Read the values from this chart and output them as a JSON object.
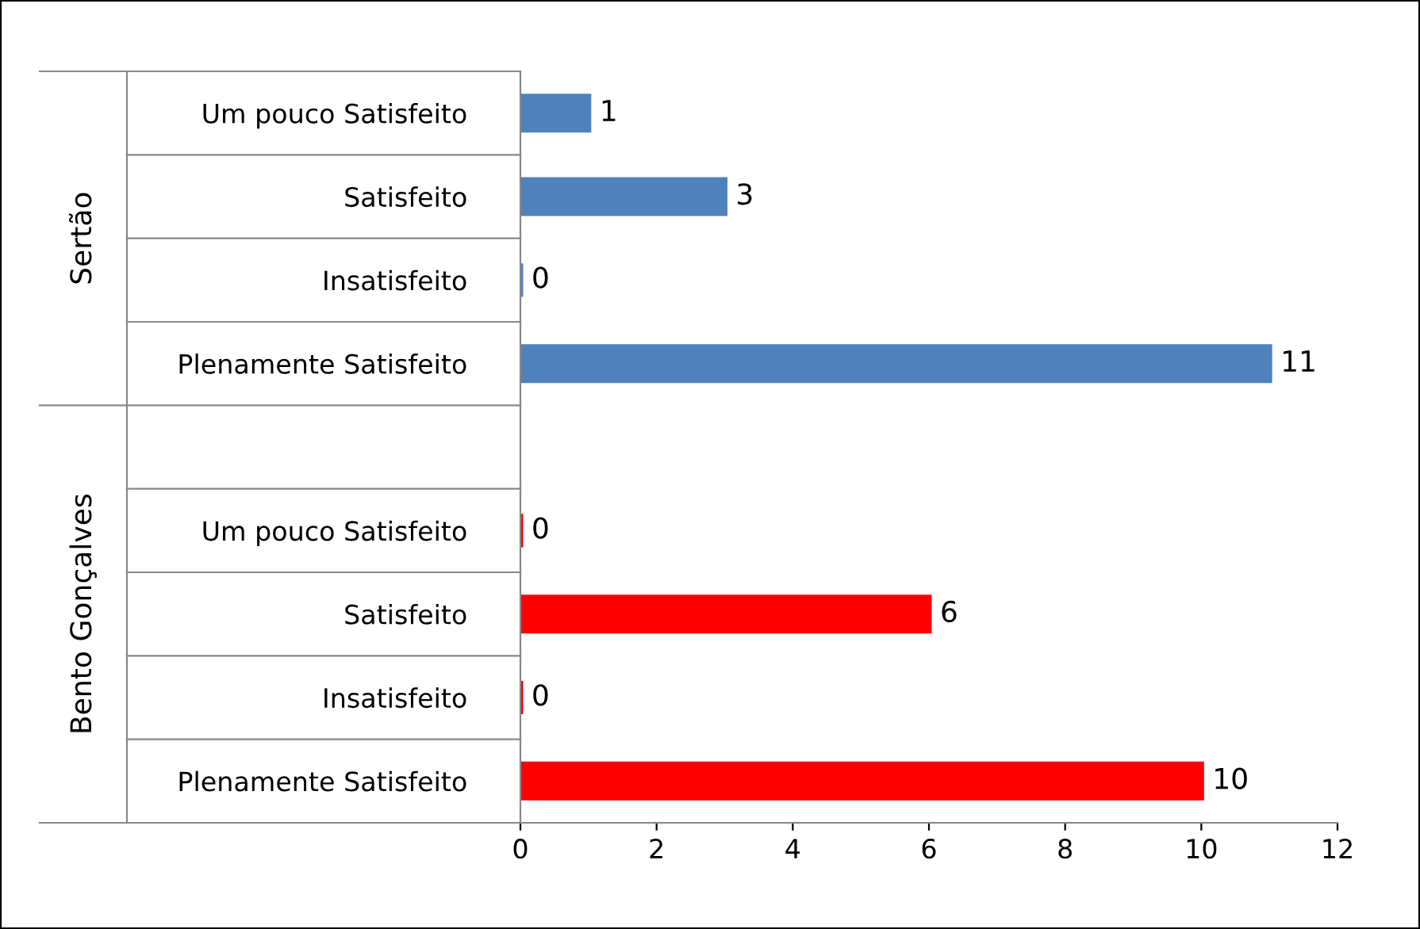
{
  "chart_data": {
    "type": "bar",
    "orientation": "horizontal",
    "categories": [
      "Um pouco Satisfeito",
      "Satisfeito",
      "Insatisfeito",
      "Plenamente Satisfeito",
      null,
      "Um pouco Satisfeito",
      "Satisfeito",
      "Insatisfeito",
      "Plenamente Satisfeito"
    ],
    "values": [
      1,
      3,
      0,
      11,
      null,
      0,
      6,
      0,
      10
    ],
    "colors": [
      "#4f81bd",
      "#4f81bd",
      "#4f81bd",
      "#4f81bd",
      "#4f81bd",
      "#ff0000",
      "#ff0000",
      "#ff0000",
      "#ff0000"
    ],
    "xlim": [
      0,
      12
    ],
    "xticks": [
      0,
      2,
      4,
      6,
      8,
      10,
      12
    ],
    "annotations": [
      "Sertão",
      "Bento Gonçalves"
    ],
    "data_labels": true,
    "grid": false
  }
}
